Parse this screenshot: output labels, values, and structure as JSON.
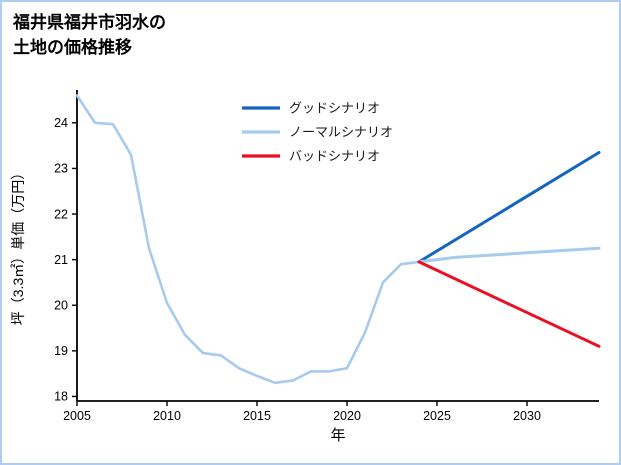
{
  "title": {
    "line1": "福井県福井市羽水の",
    "line2": "土地の価格推移"
  },
  "chart_data": {
    "type": "line",
    "title": "福井県福井市羽水の土地の価格推移",
    "xlabel": "年",
    "ylabel": "坪（3.3㎡）単価（万円）",
    "xlim": [
      2005,
      2034
    ],
    "ylim": [
      17.9,
      24.72
    ],
    "xticks": [
      2005,
      2010,
      2015,
      2020,
      2025,
      2030
    ],
    "yticks": [
      18,
      19,
      20,
      21,
      22,
      23,
      24
    ],
    "grid": false,
    "legend_position": "upper-center-inside",
    "series": [
      {
        "key": "history",
        "legend_label": null,
        "color": "#a6cbec",
        "width": 2.6,
        "x": [
          2005,
          2006,
          2007,
          2008,
          2009,
          2010,
          2011,
          2012,
          2013,
          2014,
          2015,
          2016,
          2017,
          2018,
          2019,
          2020,
          2021,
          2022,
          2023,
          2024
        ],
        "y": [
          24.6,
          24.0,
          23.97,
          23.3,
          21.25,
          20.05,
          19.35,
          18.95,
          18.9,
          18.62,
          18.45,
          18.3,
          18.35,
          18.55,
          18.55,
          18.62,
          19.4,
          20.5,
          20.9,
          20.95
        ]
      },
      {
        "key": "good",
        "legend_label": "グッドシナリオ",
        "color": "#1565c0",
        "width": 3,
        "x": [
          2024,
          2034
        ],
        "y": [
          20.95,
          23.35
        ]
      },
      {
        "key": "normal",
        "legend_label": "ノーマルシナリオ",
        "color": "#a6cbec",
        "width": 3,
        "x": [
          2024,
          2026,
          2030,
          2034
        ],
        "y": [
          20.95,
          21.05,
          21.15,
          21.25
        ]
      },
      {
        "key": "bad",
        "legend_label": "バッドシナリオ",
        "color": "#e81123",
        "width": 3,
        "x": [
          2024,
          2034
        ],
        "y": [
          20.95,
          19.1
        ]
      }
    ]
  }
}
